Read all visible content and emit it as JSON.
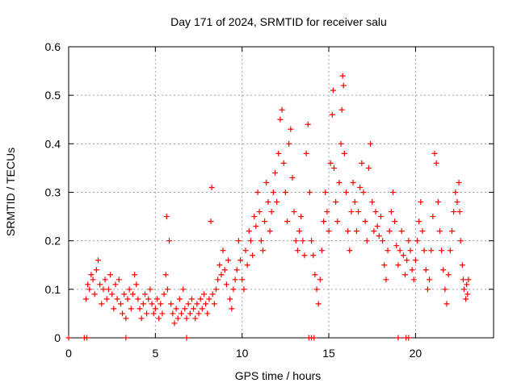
{
  "chart_data": {
    "type": "scatter",
    "title": "Day 171 of 2024, SRMTID for receiver salu",
    "xlabel": "GPS time / hours",
    "ylabel": "SRMTID / TECUs",
    "xlim": [
      0,
      24.5
    ],
    "ylim": [
      0,
      0.6
    ],
    "xticks": [
      0,
      5,
      10,
      15,
      20
    ],
    "yticks": [
      0,
      0.1,
      0.2,
      0.3,
      0.4,
      0.5,
      0.6
    ],
    "grid": true,
    "marker": "+",
    "color": "#ff0000",
    "series": [
      {
        "name": "SRMTID",
        "points": [
          [
            0.0,
            0.0
          ],
          [
            0.9,
            0.0
          ],
          [
            1.05,
            0.0
          ],
          [
            3.3,
            0.0
          ],
          [
            6.8,
            0.0
          ],
          [
            13.85,
            0.0
          ],
          [
            14.0,
            0.0
          ],
          [
            14.15,
            0.0
          ],
          [
            19.0,
            0.0
          ],
          [
            19.45,
            0.0
          ],
          [
            19.6,
            0.0
          ],
          [
            1.0,
            0.08
          ],
          [
            1.1,
            0.11
          ],
          [
            1.2,
            0.1
          ],
          [
            1.3,
            0.13
          ],
          [
            1.4,
            0.12
          ],
          [
            1.5,
            0.09
          ],
          [
            1.6,
            0.14
          ],
          [
            1.7,
            0.16
          ],
          [
            1.8,
            0.11
          ],
          [
            1.9,
            0.07
          ],
          [
            2.0,
            0.1
          ],
          [
            2.1,
            0.12
          ],
          [
            2.2,
            0.08
          ],
          [
            2.3,
            0.1
          ],
          [
            2.4,
            0.13
          ],
          [
            2.5,
            0.09
          ],
          [
            2.6,
            0.06
          ],
          [
            2.7,
            0.11
          ],
          [
            2.8,
            0.08
          ],
          [
            2.9,
            0.12
          ],
          [
            3.0,
            0.07
          ],
          [
            3.1,
            0.05
          ],
          [
            3.2,
            0.09
          ],
          [
            3.3,
            0.04
          ],
          [
            3.4,
            0.08
          ],
          [
            3.5,
            0.1
          ],
          [
            3.6,
            0.06
          ],
          [
            3.7,
            0.09
          ],
          [
            3.8,
            0.13
          ],
          [
            3.9,
            0.11
          ],
          [
            4.0,
            0.08
          ],
          [
            4.1,
            0.06
          ],
          [
            4.2,
            0.04
          ],
          [
            4.3,
            0.07
          ],
          [
            4.4,
            0.09
          ],
          [
            4.5,
            0.05
          ],
          [
            4.6,
            0.08
          ],
          [
            4.7,
            0.1
          ],
          [
            4.8,
            0.07
          ],
          [
            4.9,
            0.05
          ],
          [
            5.0,
            0.06
          ],
          [
            5.1,
            0.08
          ],
          [
            5.2,
            0.04
          ],
          [
            5.3,
            0.07
          ],
          [
            5.4,
            0.05
          ],
          [
            5.5,
            0.09
          ],
          [
            5.6,
            0.13
          ],
          [
            5.65,
            0.25
          ],
          [
            5.7,
            0.1
          ],
          [
            5.8,
            0.2
          ],
          [
            5.9,
            0.07
          ],
          [
            6.0,
            0.05
          ],
          [
            6.1,
            0.03
          ],
          [
            6.2,
            0.06
          ],
          [
            6.3,
            0.04
          ],
          [
            6.4,
            0.08
          ],
          [
            6.5,
            0.05
          ],
          [
            6.6,
            0.1
          ],
          [
            6.7,
            0.06
          ],
          [
            6.8,
            0.04
          ],
          [
            6.9,
            0.07
          ],
          [
            7.0,
            0.05
          ],
          [
            7.1,
            0.08
          ],
          [
            7.2,
            0.06
          ],
          [
            7.3,
            0.04
          ],
          [
            7.4,
            0.07
          ],
          [
            7.5,
            0.05
          ],
          [
            7.6,
            0.08
          ],
          [
            7.7,
            0.06
          ],
          [
            7.8,
            0.09
          ],
          [
            7.9,
            0.07
          ],
          [
            8.0,
            0.05
          ],
          [
            8.1,
            0.08
          ],
          [
            8.2,
            0.24
          ],
          [
            8.25,
            0.31
          ],
          [
            8.3,
            0.09
          ],
          [
            8.4,
            0.07
          ],
          [
            8.5,
            0.1
          ],
          [
            8.6,
            0.12
          ],
          [
            8.7,
            0.15
          ],
          [
            8.8,
            0.13
          ],
          [
            8.9,
            0.18
          ],
          [
            9.0,
            0.14
          ],
          [
            9.1,
            0.11
          ],
          [
            9.2,
            0.16
          ],
          [
            9.3,
            0.08
          ],
          [
            9.4,
            0.06
          ],
          [
            9.5,
            0.1
          ],
          [
            9.6,
            0.12
          ],
          [
            9.7,
            0.14
          ],
          [
            9.8,
            0.2
          ],
          [
            9.9,
            0.16
          ],
          [
            10.0,
            0.12
          ],
          [
            10.1,
            0.1
          ],
          [
            10.2,
            0.18
          ],
          [
            10.3,
            0.15
          ],
          [
            10.4,
            0.22
          ],
          [
            10.5,
            0.2
          ],
          [
            10.6,
            0.17
          ],
          [
            10.7,
            0.25
          ],
          [
            10.8,
            0.23
          ],
          [
            10.9,
            0.3
          ],
          [
            11.0,
            0.26
          ],
          [
            11.1,
            0.2
          ],
          [
            11.2,
            0.18
          ],
          [
            11.3,
            0.24
          ],
          [
            11.4,
            0.32
          ],
          [
            11.5,
            0.28
          ],
          [
            11.6,
            0.22
          ],
          [
            11.7,
            0.26
          ],
          [
            11.8,
            0.3
          ],
          [
            11.9,
            0.34
          ],
          [
            12.0,
            0.28
          ],
          [
            12.1,
            0.38
          ],
          [
            12.2,
            0.45
          ],
          [
            12.3,
            0.47
          ],
          [
            12.4,
            0.36
          ],
          [
            12.5,
            0.3
          ],
          [
            12.6,
            0.24
          ],
          [
            12.7,
            0.4
          ],
          [
            12.8,
            0.43
          ],
          [
            12.9,
            0.33
          ],
          [
            13.0,
            0.26
          ],
          [
            13.1,
            0.2
          ],
          [
            13.2,
            0.18
          ],
          [
            13.3,
            0.22
          ],
          [
            13.4,
            0.25
          ],
          [
            13.5,
            0.2
          ],
          [
            13.6,
            0.17
          ],
          [
            13.7,
            0.38
          ],
          [
            13.8,
            0.44
          ],
          [
            13.9,
            0.3
          ],
          [
            14.0,
            0.2
          ],
          [
            14.1,
            0.17
          ],
          [
            14.2,
            0.13
          ],
          [
            14.3,
            0.1
          ],
          [
            14.4,
            0.07
          ],
          [
            14.5,
            0.12
          ],
          [
            14.6,
            0.18
          ],
          [
            14.7,
            0.24
          ],
          [
            14.8,
            0.3
          ],
          [
            14.9,
            0.26
          ],
          [
            15.0,
            0.22
          ],
          [
            15.1,
            0.36
          ],
          [
            15.2,
            0.46
          ],
          [
            15.25,
            0.51
          ],
          [
            15.3,
            0.35
          ],
          [
            15.4,
            0.28
          ],
          [
            15.5,
            0.24
          ],
          [
            15.6,
            0.32
          ],
          [
            15.7,
            0.4
          ],
          [
            15.75,
            0.47
          ],
          [
            15.8,
            0.54
          ],
          [
            15.85,
            0.52
          ],
          [
            15.9,
            0.38
          ],
          [
            16.0,
            0.3
          ],
          [
            16.1,
            0.22
          ],
          [
            16.2,
            0.18
          ],
          [
            16.3,
            0.26
          ],
          [
            16.4,
            0.32
          ],
          [
            16.5,
            0.28
          ],
          [
            16.6,
            0.22
          ],
          [
            16.7,
            0.26
          ],
          [
            16.8,
            0.31
          ],
          [
            16.9,
            0.36
          ],
          [
            17.0,
            0.3
          ],
          [
            17.1,
            0.24
          ],
          [
            17.2,
            0.2
          ],
          [
            17.3,
            0.35
          ],
          [
            17.4,
            0.4
          ],
          [
            17.5,
            0.28
          ],
          [
            17.6,
            0.22
          ],
          [
            17.7,
            0.26
          ],
          [
            17.8,
            0.23
          ],
          [
            17.9,
            0.21
          ],
          [
            18.0,
            0.25
          ],
          [
            18.1,
            0.2
          ],
          [
            18.2,
            0.15
          ],
          [
            18.3,
            0.12
          ],
          [
            18.4,
            0.18
          ],
          [
            18.5,
            0.22
          ],
          [
            18.6,
            0.26
          ],
          [
            18.7,
            0.3
          ],
          [
            18.8,
            0.24
          ],
          [
            18.9,
            0.19
          ],
          [
            19.0,
            0.15
          ],
          [
            19.1,
            0.18
          ],
          [
            19.2,
            0.22
          ],
          [
            19.3,
            0.17
          ],
          [
            19.4,
            0.13
          ],
          [
            19.5,
            0.16
          ],
          [
            19.6,
            0.2
          ],
          [
            19.7,
            0.18
          ],
          [
            19.8,
            0.14
          ],
          [
            19.9,
            0.12
          ],
          [
            20.0,
            0.16
          ],
          [
            20.1,
            0.2
          ],
          [
            20.2,
            0.24
          ],
          [
            20.3,
            0.28
          ],
          [
            20.4,
            0.22
          ],
          [
            20.5,
            0.18
          ],
          [
            20.6,
            0.14
          ],
          [
            20.7,
            0.1
          ],
          [
            20.8,
            0.12
          ],
          [
            20.9,
            0.18
          ],
          [
            21.0,
            0.25
          ],
          [
            21.1,
            0.38
          ],
          [
            21.2,
            0.36
          ],
          [
            21.3,
            0.28
          ],
          [
            21.4,
            0.22
          ],
          [
            21.5,
            0.18
          ],
          [
            21.6,
            0.14
          ],
          [
            21.7,
            0.1
          ],
          [
            21.8,
            0.07
          ],
          [
            21.9,
            0.13
          ],
          [
            22.0,
            0.18
          ],
          [
            22.1,
            0.22
          ],
          [
            22.2,
            0.26
          ],
          [
            22.3,
            0.3
          ],
          [
            22.4,
            0.28
          ],
          [
            22.5,
            0.32
          ],
          [
            22.55,
            0.26
          ],
          [
            22.6,
            0.2
          ],
          [
            22.7,
            0.15
          ],
          [
            22.75,
            0.12
          ],
          [
            22.8,
            0.1
          ],
          [
            22.9,
            0.08
          ],
          [
            22.95,
            0.11
          ],
          [
            23.0,
            0.09
          ],
          [
            23.05,
            0.12
          ]
        ]
      }
    ]
  }
}
